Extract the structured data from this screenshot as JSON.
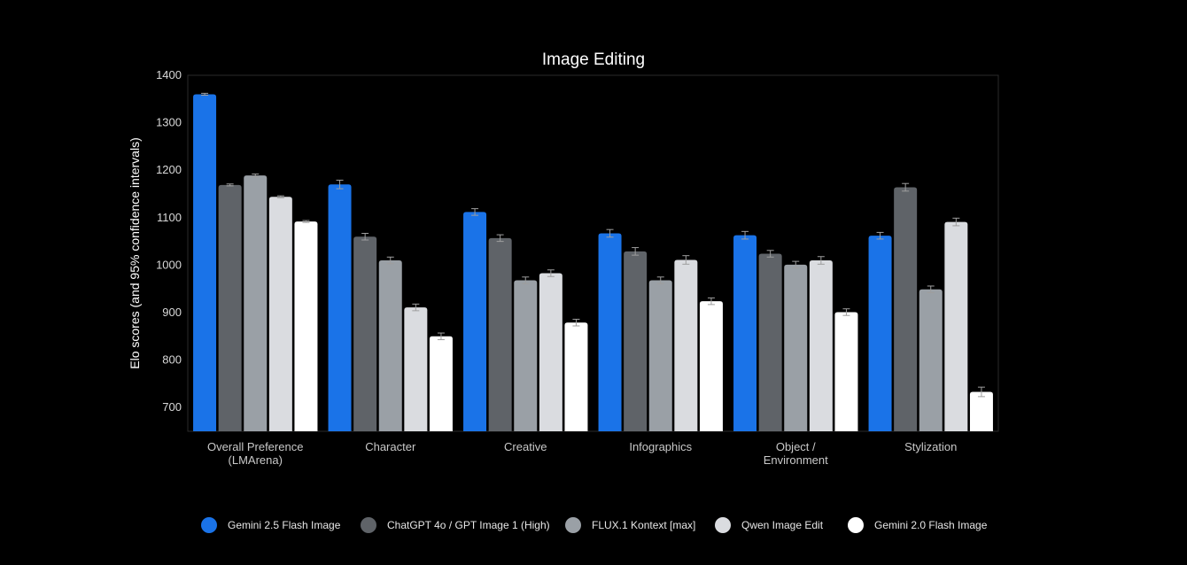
{
  "chart_data": {
    "type": "bar",
    "title": "Image Editing",
    "xlabel": "",
    "ylabel": "Elo scores (and 95% confidence intervals)",
    "ylim": [
      650,
      1400
    ],
    "yticks": [
      700,
      800,
      900,
      1000,
      1100,
      1200,
      1300,
      1400
    ],
    "grid": false,
    "legend_position": "bottom",
    "categories": [
      [
        "Overall Preference",
        "(LMArena)"
      ],
      [
        "Character"
      ],
      [
        "Creative"
      ],
      [
        "Infographics"
      ],
      [
        "Object /",
        "Environment"
      ],
      [
        "Stylization"
      ]
    ],
    "series": [
      {
        "name": "Gemini 2.5 Flash Image",
        "color": "#1a73e8",
        "values": [
          1360,
          1170,
          1112,
          1067,
          1063,
          1062
        ],
        "errors": [
          2,
          9,
          7,
          8,
          8,
          7
        ]
      },
      {
        "name": "ChatGPT 4o / GPT Image 1 (High)",
        "color": "#5f6368",
        "values": [
          1169,
          1060,
          1057,
          1029,
          1024,
          1164
        ],
        "errors": [
          2,
          7,
          7,
          8,
          7,
          8
        ]
      },
      {
        "name": "FLUX.1 Kontext [max]",
        "color": "#9aa0a6",
        "values": [
          1189,
          1010,
          968,
          968,
          1001,
          949
        ],
        "errors": [
          3,
          7,
          7,
          7,
          7,
          7
        ]
      },
      {
        "name": "Qwen Image Edit",
        "color": "#dadce0",
        "values": [
          1144,
          911,
          983,
          1011,
          1010,
          1091
        ],
        "errors": [
          2,
          7,
          7,
          9,
          8,
          8
        ]
      },
      {
        "name": "Gemini 2.0 Flash Image",
        "color": "#ffffff",
        "values": [
          1092,
          850,
          879,
          924,
          901,
          733
        ],
        "errors": [
          2,
          7,
          7,
          7,
          7,
          10
        ]
      }
    ]
  }
}
